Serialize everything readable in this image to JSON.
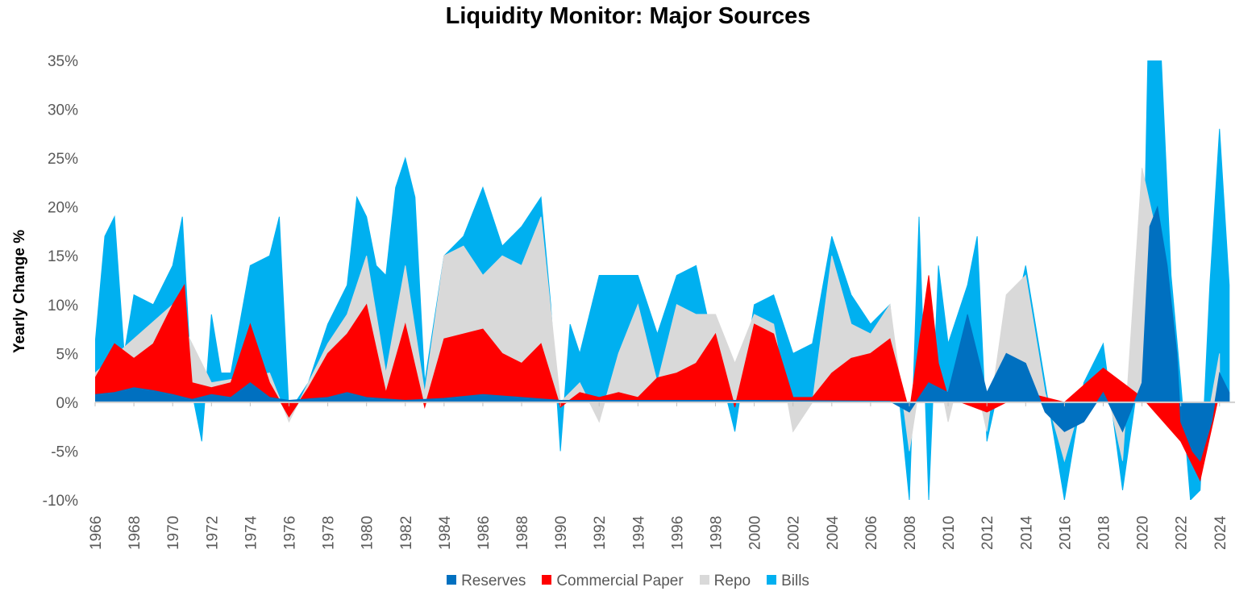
{
  "chart_data": {
    "type": "area",
    "title": "Liquidity Monitor: Major Sources",
    "ylabel": "Yearly Change %",
    "xlabel": "",
    "y_ticks": [
      "35%",
      "30%",
      "25%",
      "20%",
      "15%",
      "10%",
      "5%",
      "0%",
      "-5%",
      "-10%"
    ],
    "x_ticks": [
      "1966",
      "1968",
      "1970",
      "1972",
      "1974",
      "1976",
      "1978",
      "1980",
      "1982",
      "1984",
      "1986",
      "1988",
      "1990",
      "1992",
      "1994",
      "1996",
      "1998",
      "2000",
      "2002",
      "2004",
      "2006",
      "2008",
      "2010",
      "2012",
      "2014",
      "2016",
      "2018",
      "2020",
      "2022",
      "2024"
    ],
    "ylim": [
      -10,
      35
    ],
    "xlim": [
      1966,
      2024.8
    ],
    "grid": false,
    "legend_position": "bottom",
    "series": [
      {
        "name": "Reserves",
        "color": "#0070C0",
        "x": [
          1966,
          1967,
          1968,
          1969,
          1970,
          1971,
          1972,
          1973,
          1974,
          1975,
          1976,
          1978,
          1979,
          1980,
          1982,
          1984,
          1986,
          1988,
          1990,
          1994,
          2000,
          2007,
          2008,
          2009,
          2010,
          2011,
          2012,
          2013,
          2014,
          2015,
          2016,
          2017,
          2018,
          2019,
          2020,
          2020.4,
          2020.8,
          2021.3,
          2021.8,
          2022,
          2022.6,
          2023,
          2023.6,
          2024,
          2024.5
        ],
        "values": [
          0.8,
          1.0,
          1.5,
          1.2,
          0.8,
          0.3,
          0.8,
          0.5,
          2.0,
          0.5,
          0.2,
          0.5,
          1.0,
          0.5,
          0.2,
          0.4,
          0.8,
          0.5,
          0.2,
          0.2,
          0.2,
          0.1,
          -1.0,
          2.0,
          1.0,
          9.0,
          1.0,
          5.0,
          4.0,
          -1.0,
          -3.0,
          -2.0,
          1.0,
          -3.0,
          2.0,
          18.0,
          20.0,
          14.0,
          5.0,
          -2.0,
          -5.0,
          -6.0,
          -2.0,
          3.0,
          1.0
        ]
      },
      {
        "name": "Commercial Paper",
        "color": "#FF0000",
        "x": [
          1966,
          1967,
          1968,
          1969,
          1970,
          1970.6,
          1971,
          1972,
          1973,
          1974,
          1975,
          1976,
          1977,
          1978,
          1979,
          1980,
          1981,
          1982,
          1983,
          1984,
          1985,
          1986,
          1987,
          1988,
          1989,
          1990,
          1991,
          1992,
          1993,
          1994,
          1995,
          1996,
          1997,
          1998,
          1999,
          2000,
          2001,
          2002,
          2003,
          2004,
          2005,
          2006,
          2007,
          2008,
          2009,
          2009.5,
          2010,
          2012,
          2014,
          2016,
          2018,
          2020,
          2022,
          2023,
          2024
        ],
        "values": [
          2.5,
          6.0,
          4.5,
          6.0,
          10.0,
          12.0,
          2.0,
          1.5,
          2.0,
          8.0,
          2.0,
          -1.5,
          1.5,
          5.0,
          7.0,
          10.0,
          1.0,
          8.0,
          -0.5,
          6.5,
          7.0,
          7.5,
          5.0,
          4.0,
          6.0,
          -0.5,
          1.0,
          0.5,
          1.0,
          0.5,
          2.5,
          3.0,
          4.0,
          7.0,
          -0.5,
          8.0,
          7.0,
          0.5,
          0.5,
          3.0,
          4.5,
          5.0,
          6.5,
          -1.0,
          13.0,
          4.0,
          0.5,
          -1.0,
          1.0,
          0.0,
          3.5,
          0.5,
          -4.0,
          -8.0,
          1.0
        ]
      },
      {
        "name": "Repo",
        "color": "#D9D9D9",
        "x": [
          1966,
          1970,
          1972,
          1975,
          1976,
          1978,
          1979,
          1980,
          1981,
          1982,
          1983,
          1984,
          1985,
          1986,
          1987,
          1988,
          1989,
          1990,
          1991,
          1992,
          1993,
          1994,
          1995,
          1996,
          1997,
          1998,
          1999,
          2000,
          2001,
          2002,
          2003,
          2004,
          2005,
          2006,
          2007,
          2008,
          2009,
          2010,
          2011,
          2012,
          2013,
          2014,
          2015,
          2016,
          2017,
          2018,
          2019,
          2020,
          2021,
          2022,
          2023,
          2024
        ],
        "values": [
          3.0,
          10.0,
          2.0,
          3.0,
          -2.0,
          6.0,
          9.0,
          15.0,
          3.0,
          14.0,
          1.0,
          15.0,
          16.0,
          13.0,
          15.0,
          14.0,
          19.0,
          0.0,
          2.0,
          -2.0,
          5.0,
          10.0,
          2.0,
          10.0,
          9.0,
          9.0,
          4.0,
          9.0,
          8.0,
          -3.0,
          0.0,
          15.0,
          8.0,
          7.0,
          10.0,
          -5.0,
          8.0,
          -2.0,
          6.0,
          -3.0,
          11.0,
          13.0,
          1.0,
          -6.0,
          1.0,
          3.0,
          -6.0,
          24.0,
          15.0,
          -3.0,
          -6.0,
          5.0
        ]
      },
      {
        "name": "Bills",
        "color": "#00B0F0",
        "x": [
          1966,
          1966.5,
          1967,
          1967.5,
          1968,
          1969,
          1970,
          1970.5,
          1971,
          1971.5,
          1972,
          1972.5,
          1973,
          1974,
          1975,
          1975.5,
          1976,
          1977,
          1978,
          1979,
          1979.5,
          1980,
          1980.5,
          1981,
          1981.5,
          1982,
          1982.5,
          1983,
          1984,
          1985,
          1986,
          1987,
          1988,
          1989,
          1989.5,
          1990,
          1990.5,
          1991,
          1992,
          1993,
          1994,
          1995,
          1996,
          1997,
          1998,
          1999,
          2000,
          2001,
          2002,
          2003,
          2004,
          2005,
          2006,
          2007,
          2008,
          2008.5,
          2009,
          2009.5,
          2010,
          2011,
          2011.5,
          2012,
          2013,
          2014,
          2015,
          2016,
          2017,
          2018,
          2019,
          2020,
          2020.3,
          2021,
          2021.5,
          2022,
          2022.5,
          2023,
          2023.5,
          2024,
          2024.5
        ],
        "values": [
          6.0,
          17.0,
          19.0,
          5.0,
          11.0,
          10.0,
          14.0,
          19.0,
          1.0,
          -4.0,
          9.0,
          3.0,
          3.0,
          14.0,
          15.0,
          19.0,
          -1.0,
          2.0,
          8.0,
          12.0,
          21.0,
          19.0,
          14.0,
          13.0,
          22.0,
          25.0,
          21.0,
          2.0,
          15.0,
          17.0,
          22.0,
          16.0,
          18.0,
          21.0,
          10.0,
          -5.0,
          8.0,
          5.0,
          13.0,
          13.0,
          13.0,
          7.0,
          13.0,
          14.0,
          5.0,
          -3.0,
          10.0,
          11.0,
          5.0,
          6.0,
          17.0,
          11.0,
          8.0,
          10.0,
          -10.0,
          19.0,
          -10.0,
          14.0,
          6.0,
          12.0,
          17.0,
          -4.0,
          5.0,
          14.0,
          2.0,
          -10.0,
          2.0,
          6.0,
          -9.0,
          5.0,
          35.0,
          35.0,
          13.0,
          2.0,
          -10.0,
          -9.0,
          12.0,
          28.0,
          12.0
        ]
      }
    ]
  }
}
